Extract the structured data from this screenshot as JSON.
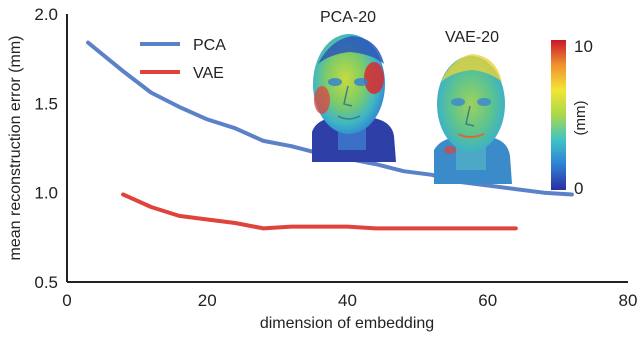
{
  "chart_data": {
    "type": "line",
    "xlabel": "dimension of embedding",
    "ylabel": "mean reconstruction error (mm)",
    "xlim": [
      0,
      80
    ],
    "ylim": [
      0.5,
      2.0
    ],
    "x_ticks": [
      "0",
      "20",
      "40",
      "60",
      "80"
    ],
    "y_ticks": [
      "0.5",
      "1.0",
      "1.5",
      "2.0"
    ],
    "y_tick_values": [
      0.5,
      1.0,
      1.5,
      2.0
    ],
    "grid": false,
    "legend_position": "top-left",
    "series": [
      {
        "name": "PCA",
        "color": "#5B82C9",
        "points": [
          [
            3,
            1.84
          ],
          [
            8,
            1.68
          ],
          [
            12,
            1.56
          ],
          [
            16,
            1.48
          ],
          [
            20,
            1.41
          ],
          [
            24,
            1.36
          ],
          [
            28,
            1.29
          ],
          [
            32,
            1.26
          ],
          [
            36,
            1.22
          ],
          [
            40,
            1.19
          ],
          [
            44,
            1.16
          ],
          [
            48,
            1.12
          ],
          [
            52,
            1.1
          ],
          [
            56,
            1.06
          ],
          [
            60,
            1.04
          ],
          [
            64,
            1.02
          ],
          [
            68,
            1.0
          ],
          [
            72,
            0.99
          ]
        ]
      },
      {
        "name": "VAE",
        "color": "#E0433B",
        "points": [
          [
            8,
            0.99
          ],
          [
            12,
            0.92
          ],
          [
            16,
            0.87
          ],
          [
            20,
            0.85
          ],
          [
            24,
            0.83
          ],
          [
            28,
            0.8
          ],
          [
            32,
            0.81
          ],
          [
            36,
            0.81
          ],
          [
            40,
            0.81
          ],
          [
            44,
            0.8
          ],
          [
            48,
            0.8
          ],
          [
            52,
            0.8
          ],
          [
            56,
            0.8
          ],
          [
            60,
            0.8
          ],
          [
            64,
            0.8
          ]
        ]
      }
    ],
    "insets": [
      {
        "title": "PCA-20"
      },
      {
        "title": "VAE-20"
      }
    ],
    "colorbar": {
      "label": "(mm)",
      "min_label": "0",
      "max_label": "10",
      "colors": [
        "#2A2E9C",
        "#2F7FD4",
        "#3FC3C8",
        "#A9D84A",
        "#F2E534",
        "#F0922E",
        "#C9162B"
      ]
    }
  }
}
